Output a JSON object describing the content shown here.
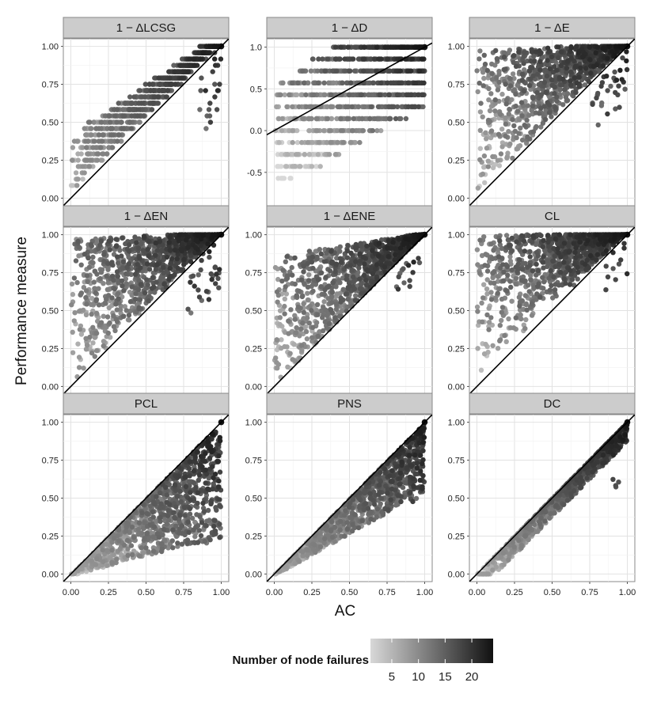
{
  "chart_data": {
    "type": "scatter",
    "xlabel": "AC",
    "ylabel": "Performance measure",
    "xlim": [
      -0.05,
      1.05
    ],
    "x_ticks": [
      "0.00",
      "0.25",
      "0.50",
      "0.75",
      "1.00"
    ],
    "x_tick_values": [
      0,
      0.25,
      0.5,
      0.75,
      1
    ],
    "grid": true,
    "reference_line": "y = x",
    "color_scale": {
      "title": "Number of node failures",
      "ticks": [
        "5",
        "10",
        "15",
        "20"
      ],
      "tick_values": [
        5,
        10,
        15,
        20
      ],
      "range": [
        1,
        24
      ],
      "low_color": "#d8d8d8",
      "high_color": "#111111"
    },
    "panels": [
      {
        "title": "1 − ΔLCSG",
        "ylim": [
          -0.05,
          1.05
        ],
        "y_ticks": [
          "0.00",
          "0.25",
          "0.50",
          "0.75",
          "1.00"
        ],
        "y_tick_values": [
          0,
          0.25,
          0.5,
          0.75,
          1
        ],
        "pattern": "steps"
      },
      {
        "title": "1 − ΔD",
        "ylim": [
          -0.9,
          1.1
        ],
        "y_ticks": [
          "-0.5",
          "0.0",
          "0.5",
          "1.0"
        ],
        "y_tick_values": [
          -0.5,
          0,
          0.5,
          1
        ],
        "pattern": "bands"
      },
      {
        "title": "1 − ΔE",
        "ylim": [
          -0.05,
          1.05
        ],
        "y_ticks": [
          "0.00",
          "0.25",
          "0.50",
          "0.75",
          "1.00"
        ],
        "y_tick_values": [
          0,
          0.25,
          0.5,
          0.75,
          1
        ],
        "pattern": "above"
      },
      {
        "title": "1 − ΔEN",
        "ylim": [
          -0.05,
          1.05
        ],
        "y_ticks": [
          "0.00",
          "0.25",
          "0.50",
          "0.75",
          "1.00"
        ],
        "y_tick_values": [
          0,
          0.25,
          0.5,
          0.75,
          1
        ],
        "pattern": "above"
      },
      {
        "title": "1 − ΔENE",
        "ylim": [
          -0.05,
          1.05
        ],
        "y_ticks": [
          "0.00",
          "0.25",
          "0.50",
          "0.75",
          "1.00"
        ],
        "y_tick_values": [
          0,
          0.25,
          0.5,
          0.75,
          1
        ],
        "pattern": "above_mid"
      },
      {
        "title": "CL",
        "ylim": [
          -0.05,
          1.05
        ],
        "y_ticks": [
          "0.00",
          "0.25",
          "0.50",
          "0.75",
          "1.00"
        ],
        "y_tick_values": [
          0,
          0.25,
          0.5,
          0.75,
          1
        ],
        "pattern": "above_strong"
      },
      {
        "title": "PCL",
        "ylim": [
          -0.05,
          1.05
        ],
        "y_ticks": [
          "0.00",
          "0.25",
          "0.50",
          "0.75",
          "1.00"
        ],
        "y_tick_values": [
          0,
          0.25,
          0.5,
          0.75,
          1
        ],
        "pattern": "below_wide"
      },
      {
        "title": "PNS",
        "ylim": [
          -0.05,
          1.05
        ],
        "y_ticks": [
          "0.00",
          "0.25",
          "0.50",
          "0.75",
          "1.00"
        ],
        "y_tick_values": [
          0,
          0.25,
          0.5,
          0.75,
          1
        ],
        "pattern": "below_mid"
      },
      {
        "title": "DC",
        "ylim": [
          -0.05,
          1.05
        ],
        "y_ticks": [
          "0.00",
          "0.25",
          "0.50",
          "0.75",
          "1.00"
        ],
        "y_tick_values": [
          0,
          0.25,
          0.5,
          0.75,
          1
        ],
        "pattern": "below_narrow"
      }
    ]
  }
}
